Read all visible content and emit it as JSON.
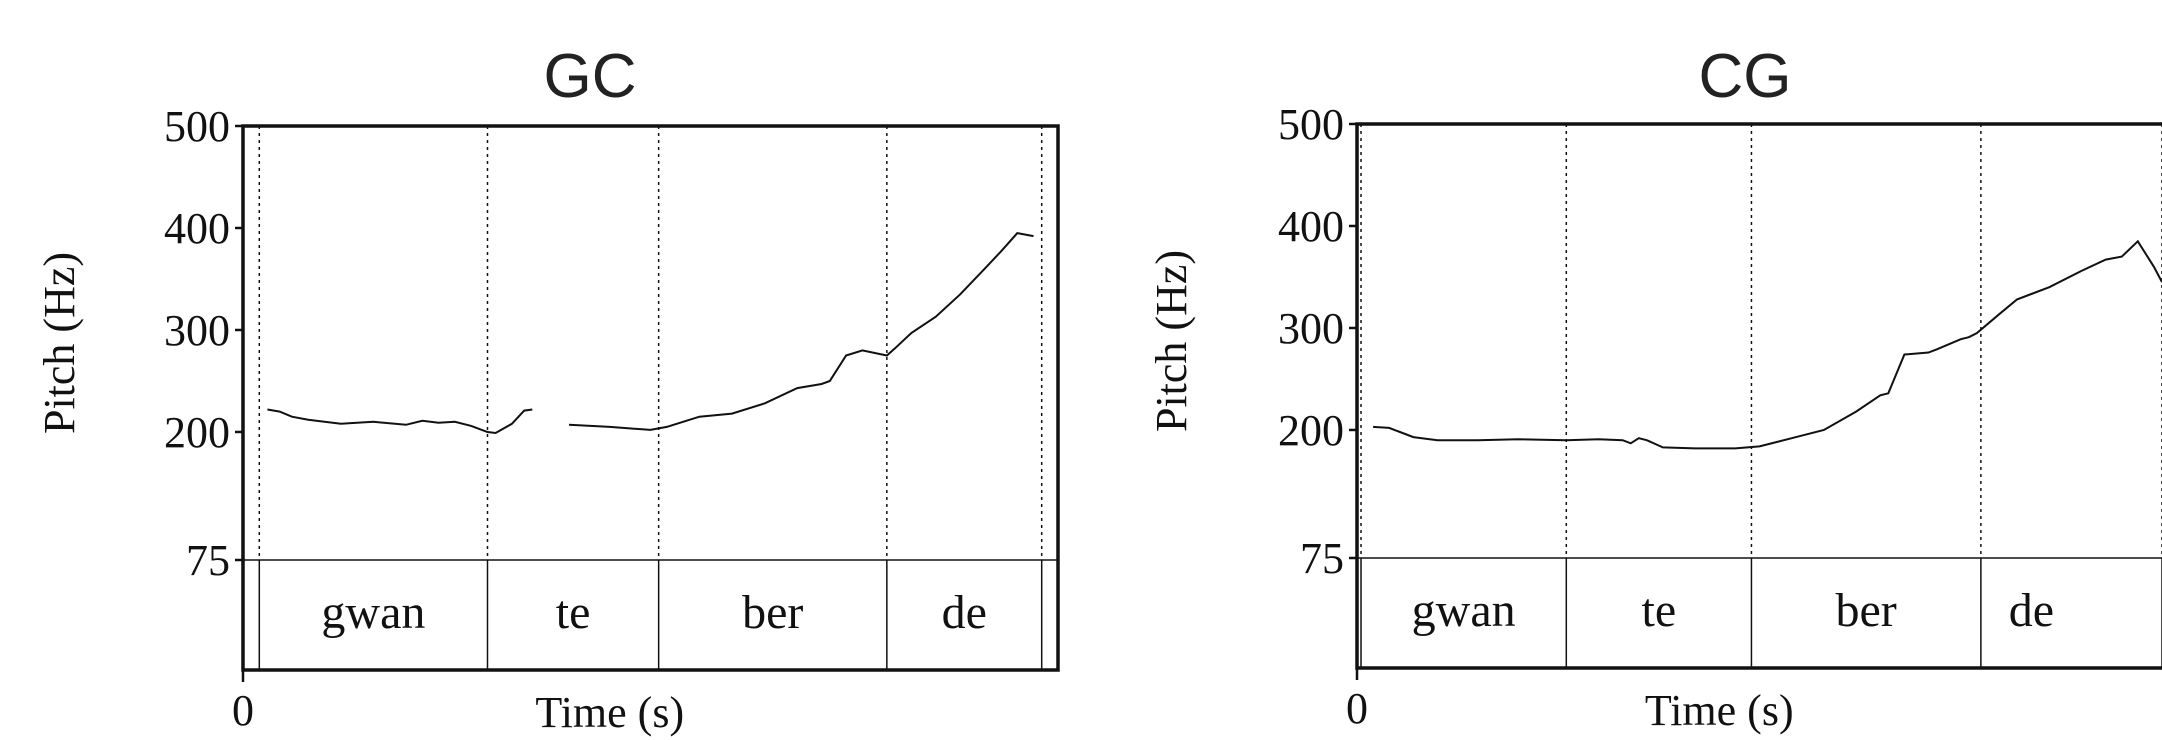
{
  "chart_data": [
    {
      "type": "line",
      "title": "GC",
      "xlabel": "Time (s)",
      "ylabel": "Pitch (Hz)",
      "x_ticks": [
        "0"
      ],
      "y_ticks": [
        "500",
        "400",
        "300",
        "200",
        "75"
      ],
      "ylim": [
        75,
        500
      ],
      "xlim": [
        0,
        1.0
      ],
      "boundaries": [
        0.02,
        0.3,
        0.51,
        0.79,
        0.98
      ],
      "segments": [
        "gwan",
        "te",
        "ber",
        "de"
      ],
      "series": [
        {
          "values": [
            [
              0.03,
              222
            ],
            [
              0.045,
              220
            ],
            [
              0.06,
              215
            ],
            [
              0.08,
              212
            ],
            [
              0.12,
              208
            ],
            [
              0.16,
              210
            ],
            [
              0.2,
              207
            ],
            [
              0.22,
              211
            ],
            [
              0.24,
              209
            ],
            [
              0.26,
              210
            ],
            [
              0.28,
              206
            ],
            [
              0.3,
              200
            ],
            [
              0.31,
              199
            ],
            [
              0.33,
              208
            ],
            [
              0.345,
              221
            ],
            [
              0.355,
              222
            ]
          ]
        },
        {
          "values": [
            [
              0.4,
              207
            ],
            [
              0.45,
              205
            ],
            [
              0.5,
              202
            ],
            [
              0.52,
              205
            ],
            [
              0.54,
              210
            ],
            [
              0.56,
              215
            ],
            [
              0.6,
              218
            ],
            [
              0.64,
              228
            ],
            [
              0.68,
              243
            ],
            [
              0.71,
              247
            ],
            [
              0.72,
              250
            ],
            [
              0.74,
              275
            ],
            [
              0.76,
              280
            ],
            [
              0.79,
              275
            ],
            [
              0.8,
              282
            ],
            [
              0.82,
              297
            ],
            [
              0.85,
              313
            ],
            [
              0.88,
              335
            ],
            [
              0.91,
              360
            ],
            [
              0.93,
              377
            ],
            [
              0.95,
              395
            ],
            [
              0.97,
              392
            ]
          ]
        }
      ]
    },
    {
      "type": "line",
      "title": "CG",
      "xlabel": "Time (s)",
      "ylabel": "Pitch (Hz)",
      "x_ticks": [
        "0"
      ],
      "y_ticks": [
        "500",
        "400",
        "300",
        "200",
        "75"
      ],
      "ylim": [
        75,
        500
      ],
      "xlim": [
        0,
        1.0
      ],
      "boundaries": [
        0.005,
        0.26,
        0.49,
        0.775,
        1.0
      ],
      "segments": [
        "gwan",
        "te",
        "ber",
        "de"
      ],
      "series": [
        {
          "values": [
            [
              0.02,
              203
            ],
            [
              0.04,
              202
            ],
            [
              0.07,
              193
            ],
            [
              0.1,
              190
            ],
            [
              0.15,
              190
            ],
            [
              0.2,
              191
            ],
            [
              0.26,
              190
            ],
            [
              0.3,
              191
            ],
            [
              0.33,
              190
            ],
            [
              0.34,
              187
            ],
            [
              0.35,
              192
            ],
            [
              0.36,
              190
            ],
            [
              0.38,
              183
            ],
            [
              0.42,
              182
            ],
            [
              0.47,
              182
            ],
            [
              0.5,
              184
            ],
            [
              0.54,
              192
            ],
            [
              0.58,
              200
            ],
            [
              0.62,
              218
            ],
            [
              0.65,
              234
            ],
            [
              0.66,
              236
            ],
            [
              0.68,
              274
            ],
            [
              0.71,
              276
            ],
            [
              0.72,
              279
            ],
            [
              0.75,
              289
            ],
            [
              0.76,
              291
            ],
            [
              0.77,
              295
            ],
            [
              0.8,
              315
            ],
            [
              0.82,
              328
            ],
            [
              0.86,
              340
            ],
            [
              0.9,
              356
            ],
            [
              0.93,
              367
            ],
            [
              0.95,
              370
            ],
            [
              0.97,
              385
            ],
            [
              0.99,
              360
            ],
            [
              1.0,
              345
            ]
          ]
        }
      ]
    }
  ]
}
